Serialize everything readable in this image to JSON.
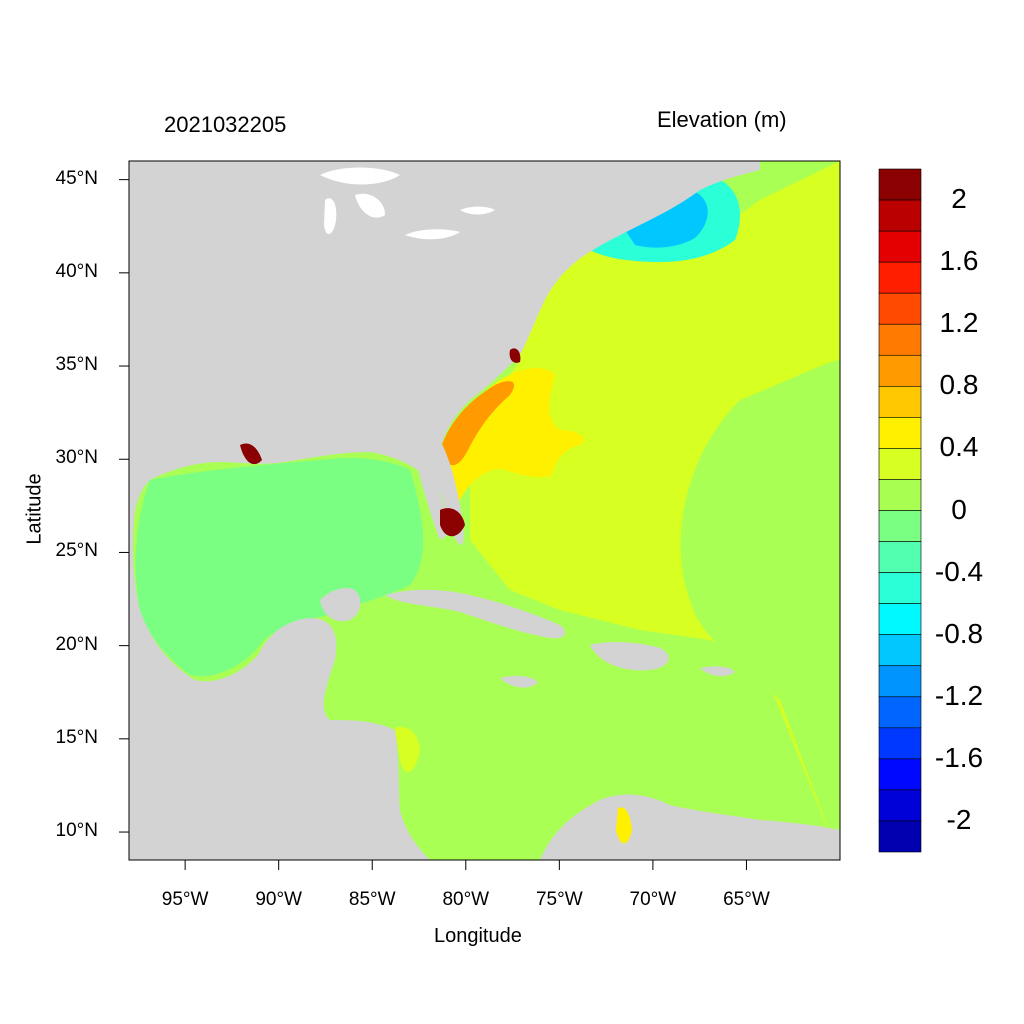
{
  "map": {
    "title_left": "2021032205",
    "title_right": "Elevation (m)",
    "xlabel": "Longitude",
    "ylabel": "Latitude",
    "lon_ticks": [
      "95°W",
      "90°W",
      "85°W",
      "80°W",
      "75°W",
      "70°W",
      "65°W"
    ],
    "lat_ticks": [
      "45°N",
      "40°N",
      "35°N",
      "30°N",
      "25°N",
      "20°N",
      "15°N",
      "10°N"
    ],
    "lon_range": [
      -98,
      -60
    ],
    "lat_range": [
      8.5,
      46
    ],
    "land_color": "#d3d3d3",
    "colorbar": {
      "labels": [
        "2",
        "1.6",
        "1.2",
        "0.8",
        "0.4",
        "0",
        "-0.4",
        "-0.8",
        "-1.2",
        "-1.6",
        "-2"
      ],
      "colors": [
        "#8b0000",
        "#bb0000",
        "#e40000",
        "#ff1e00",
        "#ff4a00",
        "#ff7a00",
        "#ff9a00",
        "#ffc800",
        "#fff000",
        "#d8ff22",
        "#a8ff52",
        "#7aff82",
        "#52ffb0",
        "#2affd8",
        "#00f8ff",
        "#00c8ff",
        "#0094ff",
        "#0066ff",
        "#0038ff",
        "#0008ff",
        "#0000d8",
        "#0000b0"
      ]
    }
  }
}
